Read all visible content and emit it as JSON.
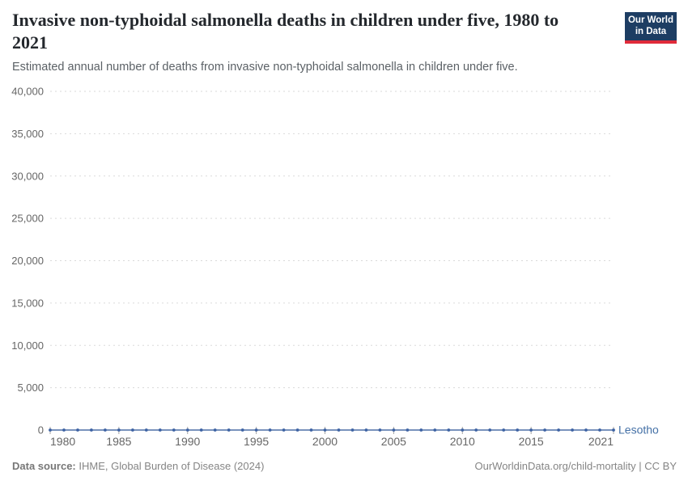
{
  "header": {
    "title": "Invasive non-typhoidal salmonella deaths in children under five, 1980 to 2021",
    "subtitle": "Estimated annual number of deaths from invasive non-typhoidal salmonella in children under five.",
    "logo": {
      "line1": "Our World",
      "line2": "in Data"
    }
  },
  "footer": {
    "source_label": "Data source:",
    "source_text": " IHME, Global Burden of Disease (2024)",
    "credit": "OurWorldinData.org/child-mortality | CC BY"
  },
  "colors": {
    "series_line": "#4d6fa5",
    "series_dot": "#3d62a3",
    "series_label": "#4470a6",
    "gridline": "#dadada",
    "axis_label": "#666666",
    "tick_mark": "#a3a3a3",
    "logo_bg": "#1d3d63",
    "logo_red": "#e02b3a"
  },
  "chart_data": {
    "type": "line",
    "title": "Invasive non-typhoidal salmonella deaths in children under five, 1980 to 2021",
    "xlabel": "",
    "ylabel": "",
    "ylim": [
      0,
      40000
    ],
    "yticks": [
      0,
      5000,
      10000,
      15000,
      20000,
      25000,
      30000,
      35000,
      40000
    ],
    "xticks": [
      1980,
      1985,
      1990,
      1995,
      2000,
      2005,
      2010,
      2015,
      2021
    ],
    "grid": "horizontal-dashed",
    "legend_position": "end-of-line",
    "x": [
      1980,
      1981,
      1982,
      1983,
      1984,
      1985,
      1986,
      1987,
      1988,
      1989,
      1990,
      1991,
      1992,
      1993,
      1994,
      1995,
      1996,
      1997,
      1998,
      1999,
      2000,
      2001,
      2002,
      2003,
      2004,
      2005,
      2006,
      2007,
      2008,
      2009,
      2010,
      2011,
      2012,
      2013,
      2014,
      2015,
      2016,
      2017,
      2018,
      2019,
      2020,
      2021
    ],
    "series": [
      {
        "name": "Lesotho",
        "values": [
          0,
          0,
          0,
          0,
          0,
          0,
          0,
          0,
          0,
          0,
          0,
          0,
          0,
          0,
          0,
          0,
          0,
          0,
          0,
          0,
          0,
          0,
          0,
          0,
          0,
          0,
          0,
          0,
          0,
          0,
          0,
          0,
          0,
          0,
          0,
          0,
          0,
          0,
          0,
          0,
          0,
          0
        ]
      }
    ]
  }
}
